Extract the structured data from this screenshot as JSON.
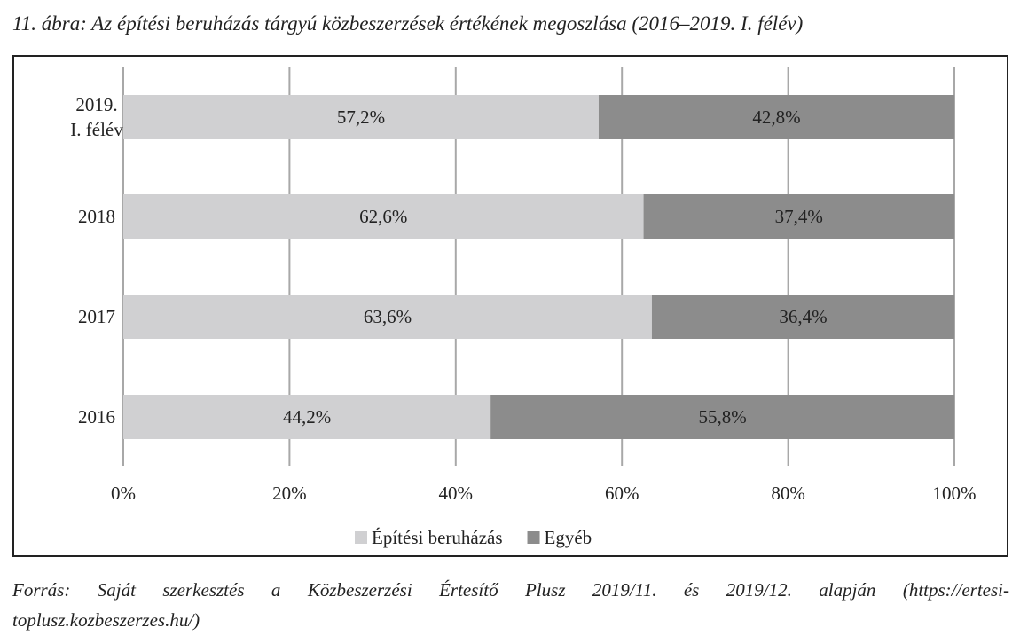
{
  "caption": "11. ábra: Az építési beruházás tárgyú közbeszerzések értékének megoszlása (2016–2019. I. félév)",
  "source": {
    "line1": "Forrás: Saját szerkesztés a Közbeszerzési Értesítő Plusz 2019/11. és 2019/12. alapján (https://ertesi-",
    "line2": "toplusz.kozbeszerzes.hu/)"
  },
  "chart_data": {
    "type": "bar",
    "orientation": "horizontal",
    "stacked": "100%",
    "categories": [
      [
        "2019.",
        "I. félév"
      ],
      [
        "2018"
      ],
      [
        "2017"
      ],
      [
        "2016"
      ]
    ],
    "series": [
      {
        "name": "Építési beruházás",
        "color": "#d0d0d2",
        "values": [
          57.2,
          62.6,
          63.6,
          44.2
        ],
        "labels": [
          "57,2%",
          "62,6%",
          "63,6%",
          "44,2%"
        ]
      },
      {
        "name": "Egyéb",
        "color": "#8c8c8c",
        "values": [
          42.8,
          37.4,
          36.4,
          55.8
        ],
        "labels": [
          "42,8%",
          "37,4%",
          "36,4%",
          "55,8%"
        ]
      }
    ],
    "xlim": [
      0,
      100
    ],
    "xticks": [
      "0%",
      "20%",
      "40%",
      "60%",
      "80%",
      "100%"
    ],
    "grid": true,
    "legend": "bottom"
  }
}
